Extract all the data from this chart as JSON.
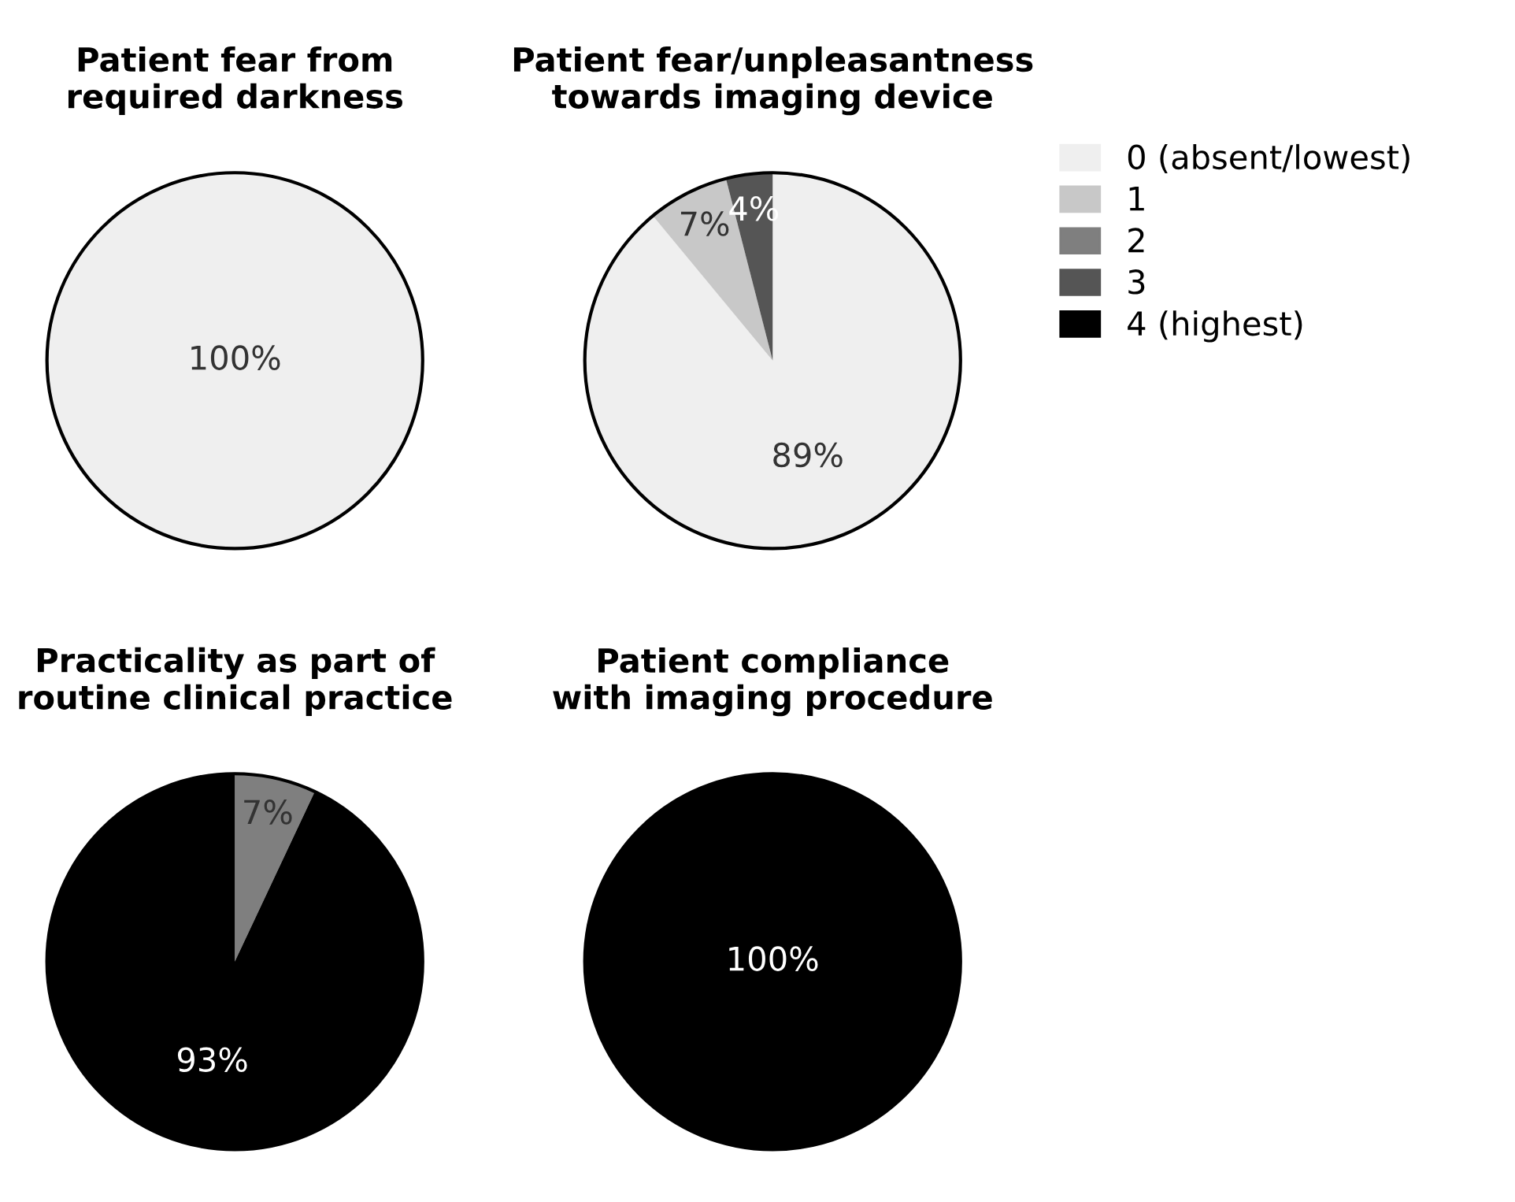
{
  "chart_data": [
    {
      "type": "pie",
      "title": "Patient fear from\nrequired darkness",
      "categories": [
        null
      ],
      "values": [
        100
      ],
      "value_labels": [
        "100%"
      ],
      "colors": [
        "#efefef"
      ]
    },
    {
      "type": "pie",
      "title": "Patient fear/unpleasantness\ntowards imaging device",
      "categories": [
        "0 (absent/lowest)",
        "1",
        "2",
        "3",
        "4 (highest)"
      ],
      "values": [
        89,
        7,
        0,
        4,
        0
      ],
      "value_labels": [
        "89%",
        "7%",
        null,
        "4%",
        null
      ],
      "colors": [
        "#efefef",
        "#c8c8c8",
        "#7f7f7f",
        "#555555",
        "#000000"
      ],
      "legend": "right"
    },
    {
      "type": "pie",
      "title": "Practicality as part of\nroutine clinical practice",
      "categories": [
        null,
        null
      ],
      "values": [
        7,
        93
      ],
      "value_labels": [
        "7%",
        "93%"
      ],
      "colors": [
        "#7f7f7f",
        "#000000"
      ]
    },
    {
      "type": "pie",
      "title": "Patient compliance\nwith imaging procedure",
      "categories": [
        null
      ],
      "values": [
        100
      ],
      "value_labels": [
        "100%"
      ],
      "colors": [
        "#000000"
      ]
    }
  ]
}
